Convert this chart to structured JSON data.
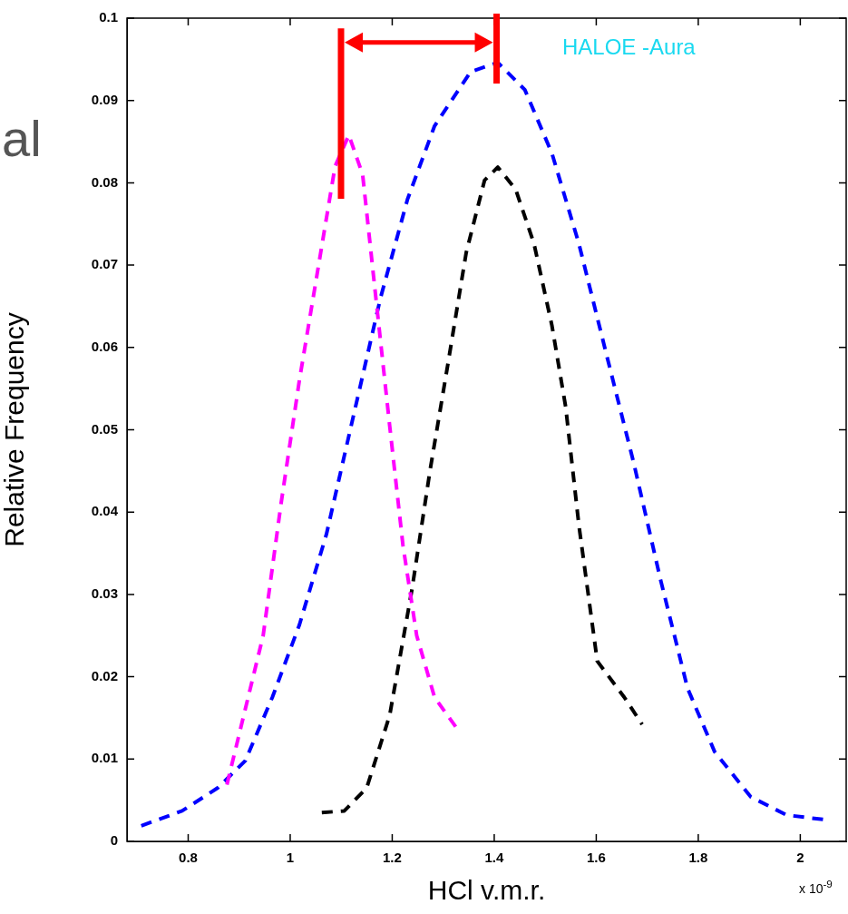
{
  "chart_data": {
    "type": "line",
    "xlabel": "HCl v.m.r.",
    "ylabel": "Relative Frequency",
    "xlim": [
      0.68,
      2.09
    ],
    "xticks": [
      0.8,
      1,
      1.2,
      1.4,
      1.6,
      1.8,
      2
    ],
    "ylim": [
      0,
      0.1
    ],
    "yticks": [
      0,
      0.01,
      0.02,
      0.03,
      0.04,
      0.05,
      0.06,
      0.07,
      0.08,
      0.09,
      0.1
    ],
    "grid": false,
    "legend": false,
    "marker": "none",
    "line_style": "dashed",
    "annotations": [
      "HALOE -Aura",
      "x 10$^{-9}$",
      "al"
    ],
    "series": [
      {
        "color": "#ff00ff",
        "x": [
          0.876,
          0.947,
          0.982,
          1.018,
          1.053,
          1.088,
          1.115,
          1.142,
          1.168,
          1.195,
          1.221,
          1.248,
          1.283,
          1.327
        ],
        "values": [
          0.0069,
          0.025,
          0.041,
          0.056,
          0.069,
          0.082,
          0.0858,
          0.081,
          0.066,
          0.0505,
          0.036,
          0.025,
          0.0175,
          0.0137
        ]
      },
      {
        "color": "#0000ff",
        "x": [
          0.708,
          0.788,
          0.858,
          0.912,
          0.965,
          1.018,
          1.071,
          1.124,
          1.177,
          1.23,
          1.283,
          1.354,
          1.407,
          1.46,
          1.513,
          1.566,
          1.619,
          1.673,
          1.726,
          1.779,
          1.832,
          1.903,
          1.973,
          2.053
        ],
        "values": [
          0.0019,
          0.0037,
          0.0065,
          0.0098,
          0.0175,
          0.0263,
          0.0373,
          0.0517,
          0.066,
          0.078,
          0.0869,
          0.0935,
          0.0946,
          0.0913,
          0.0836,
          0.0726,
          0.0594,
          0.0461,
          0.0318,
          0.0186,
          0.0109,
          0.0054,
          0.0032,
          0.0026
        ]
      },
      {
        "color": "#000000",
        "x": [
          1.062,
          1.106,
          1.15,
          1.195,
          1.239,
          1.274,
          1.31,
          1.345,
          1.381,
          1.407,
          1.442,
          1.478,
          1.513,
          1.54,
          1.566,
          1.602,
          1.655,
          1.69
        ],
        "values": [
          0.0035,
          0.0037,
          0.0065,
          0.0153,
          0.0307,
          0.045,
          0.0583,
          0.0715,
          0.0803,
          0.0819,
          0.0792,
          0.0726,
          0.0627,
          0.0528,
          0.0384,
          0.0219,
          0.0175,
          0.0142
        ]
      }
    ]
  }
}
